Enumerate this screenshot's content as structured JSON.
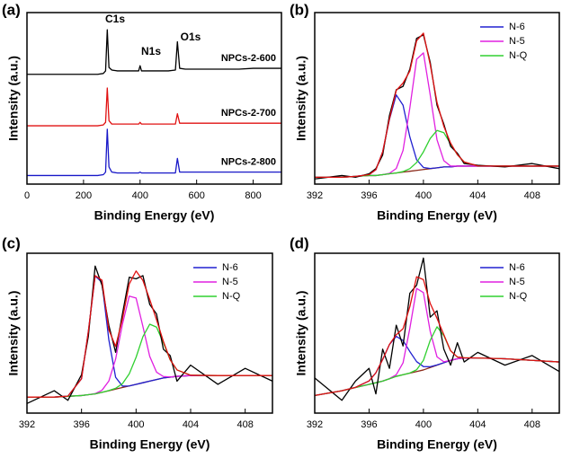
{
  "chart_data": [
    {
      "type": "line",
      "panel_label": "(a)",
      "x_label": "Binding Energy (eV)",
      "y_label": "Intensity (a.u.)",
      "xlim": [
        0,
        900
      ],
      "xticks": [
        0,
        200,
        400,
        600,
        800
      ],
      "ylim": [
        0,
        100
      ],
      "legend": "inline",
      "annotations": [
        "C1s",
        "N1s",
        "O1s"
      ],
      "x": [
        0,
        50,
        100,
        150,
        200,
        250,
        270,
        278,
        284,
        290,
        300,
        320,
        360,
        395,
        400,
        405,
        450,
        500,
        525,
        532,
        540,
        560,
        600,
        650,
        700,
        750,
        800,
        850,
        900
      ],
      "series": [
        {
          "name": "NPCs-2-600",
          "color": "#000000",
          "values": [
            64,
            64,
            64,
            64,
            64,
            64,
            64.5,
            66,
            90,
            68,
            66.5,
            66,
            66,
            66,
            69,
            66,
            66,
            66,
            66.5,
            83,
            67.5,
            67,
            67,
            67,
            67,
            67,
            67.5,
            67.5,
            67.5
          ]
        },
        {
          "name": "NPCs-2-700",
          "color": "#e01010",
          "values": [
            34,
            34,
            34,
            34,
            34,
            34,
            34.5,
            36,
            56,
            37,
            35,
            35,
            35,
            35,
            36,
            35,
            35,
            35,
            35,
            41,
            35.5,
            35.5,
            35.5,
            35.5,
            35.5,
            35.5,
            35.5,
            35.5,
            35.5
          ]
        },
        {
          "name": "NPCs-2-800",
          "color": "#1818c8",
          "values": [
            5,
            5,
            5,
            5,
            5,
            5,
            5.5,
            7,
            32,
            10,
            7,
            6.5,
            6.5,
            6.5,
            7,
            6.5,
            6.5,
            6.5,
            6.5,
            15,
            7,
            7,
            7,
            7,
            7,
            7,
            7,
            7,
            7
          ]
        }
      ]
    },
    {
      "type": "line",
      "panel_label": "(b)",
      "x_label": "Binding Energy (eV)",
      "y_label": "Intensity (a.u.)",
      "xlim": [
        392,
        410
      ],
      "xticks": [
        392,
        396,
        400,
        404,
        408
      ],
      "ylim": [
        0,
        100
      ],
      "legend": "upper right",
      "x": [
        392,
        394,
        395,
        396,
        396.5,
        397,
        397.5,
        398,
        398.5,
        399,
        399.5,
        400,
        400.5,
        401,
        401.5,
        402,
        402.5,
        403,
        404,
        406,
        408,
        410
      ],
      "series": [
        {
          "color": "#8b2a1a",
          "values": [
            4,
            4,
            4.5,
            5,
            5,
            5.5,
            6,
            6.5,
            7,
            7.5,
            8,
            8.5,
            9,
            9.5,
            10,
            10,
            10.5,
            10.5,
            10.5,
            10.5,
            10.5,
            10.5
          ]
        },
        {
          "name": "N-6",
          "color": "#2020d0",
          "values": [
            4,
            4,
            4.5,
            5.5,
            8.4,
            18.8,
            37.7,
            52,
            46,
            27.5,
            14.2,
            9.7,
            9.1,
            9.5,
            10,
            10,
            10.5,
            10.5,
            10.5,
            10.5,
            10.5,
            10.5
          ]
        },
        {
          "name": "N-5",
          "color": "#e020e0",
          "values": [
            4,
            4,
            4.5,
            5,
            5,
            5.5,
            6.3,
            9.1,
            19.6,
            44.4,
            72.8,
            76.5,
            52,
            25.8,
            13.7,
            10.5,
            10.5,
            10.5,
            10.5,
            10.5,
            10.5,
            10.5
          ]
        },
        {
          "name": "N-Q",
          "color": "#30d030",
          "values": [
            4,
            4,
            4.5,
            5,
            5,
            5.5,
            6,
            6.5,
            7.3,
            9,
            12.6,
            18.8,
            26.6,
            31.3,
            30,
            23.4,
            17.1,
            12.9,
            10.6,
            10.5,
            10.5,
            10.5
          ]
        },
        {
          "color": "#000000",
          "values": [
            3,
            5,
            4,
            6,
            9,
            17,
            40,
            55,
            57,
            67,
            85,
            87,
            71,
            46,
            35,
            22,
            18,
            12,
            11,
            10,
            12,
            9
          ]
        },
        {
          "color": "#e01010",
          "values": [
            4,
            4,
            4.5,
            5.5,
            8.4,
            18.8,
            38,
            54.6,
            58.9,
            65.9,
            83.6,
            88,
            69.7,
            47.6,
            33.7,
            23.9,
            17.1,
            12.9,
            10.6,
            10.5,
            10.5,
            10.5
          ]
        }
      ]
    },
    {
      "type": "line",
      "panel_label": "(c)",
      "x_label": "Binding Energy (eV)",
      "y_label": "Intensity (a.u.)",
      "xlim": [
        392,
        410
      ],
      "xticks": [
        392,
        396,
        400,
        404,
        408
      ],
      "ylim": [
        0,
        100
      ],
      "legend": "upper right",
      "x": [
        392,
        394,
        395,
        396,
        396.5,
        397,
        397.5,
        398,
        398.5,
        399,
        399.5,
        400,
        400.5,
        401,
        401.5,
        402,
        402.5,
        403,
        404,
        406,
        408,
        410
      ],
      "series": [
        {
          "color": "#8b2a1a",
          "values": [
            10,
            10,
            10.5,
            11,
            11.5,
            12,
            13,
            14,
            15,
            16,
            17,
            18,
            19,
            20,
            21,
            22,
            22.5,
            23,
            23.5,
            23.5,
            23.5,
            23.5
          ]
        },
        {
          "name": "N-6",
          "color": "#2020d0",
          "values": [
            10,
            10,
            10.6,
            21.5,
            51.1,
            85.8,
            81.8,
            46,
            22.4,
            16.9,
            17,
            18,
            19,
            20,
            21,
            22,
            22.5,
            23,
            23.5,
            23.5,
            23.5,
            23.5
          ]
        },
        {
          "name": "N-5",
          "color": "#e020e0",
          "values": [
            10,
            10,
            10.5,
            11,
            11.5,
            12.2,
            14.3,
            20,
            33.8,
            55.6,
            73.2,
            72,
            54.2,
            35.5,
            25.6,
            22.9,
            22.6,
            23,
            23.5,
            23.5,
            23.5,
            23.5
          ]
        },
        {
          "name": "N-Q",
          "color": "#30d030",
          "values": [
            10,
            10,
            10.5,
            11,
            11.5,
            12,
            13,
            14.1,
            15.5,
            18.4,
            24.6,
            34.9,
            47.8,
            55.6,
            53.8,
            44,
            33.3,
            27,
            23.7,
            23.5,
            23.5,
            23.5
          ]
        },
        {
          "color": "#000000",
          "values": [
            6,
            14,
            8,
            24,
            48,
            92,
            80,
            55,
            38,
            62,
            85,
            84,
            86,
            68,
            62,
            40,
            36,
            20,
            30,
            18,
            28,
            20
          ]
        },
        {
          "color": "#e01010",
          "values": [
            10,
            10,
            10.6,
            21.5,
            51.1,
            86,
            83.1,
            52.1,
            41.7,
            58.9,
            80.8,
            88.9,
            83,
            71.1,
            58.4,
            44.9,
            33.4,
            27,
            23.7,
            23.5,
            23.5,
            23.5
          ]
        }
      ]
    },
    {
      "type": "line",
      "panel_label": "(d)",
      "x_label": "Binding Energy (eV)",
      "y_label": "Intensity (a.u.)",
      "xlim": [
        392,
        410
      ],
      "xticks": [
        392,
        396,
        400,
        404,
        408
      ],
      "ylim": [
        0,
        100
      ],
      "legend": "upper right",
      "x": [
        392,
        394,
        395,
        396,
        396.5,
        397,
        397.5,
        398,
        398.5,
        399,
        399.5,
        400,
        400.5,
        401,
        401.5,
        402,
        402.5,
        403,
        404,
        406,
        408,
        410
      ],
      "series": [
        {
          "color": "#8b2a1a",
          "values": [
            11,
            14,
            16,
            18,
            19,
            20,
            21.5,
            23,
            24,
            25,
            26,
            27,
            28.5,
            30,
            31.5,
            33,
            34,
            34.5,
            34.5,
            34,
            33,
            32
          ]
        },
        {
          "name": "N-6",
          "color": "#2020d0",
          "values": [
            11,
            14,
            16.1,
            20.1,
            25.2,
            33.5,
            42.9,
            48,
            45.4,
            38.5,
            32.2,
            29.1,
            29,
            30.1,
            31.5,
            33,
            34,
            34.5,
            34.5,
            34,
            33,
            32
          ]
        },
        {
          "name": "N-5",
          "color": "#e020e0",
          "values": [
            11,
            14,
            16,
            18,
            19,
            20,
            21.6,
            24,
            31.4,
            53,
            78,
            75.4,
            51.1,
            35.2,
            32.1,
            33,
            34,
            34.5,
            34.5,
            34,
            33,
            32
          ]
        },
        {
          "name": "N-Q",
          "color": "#30d030",
          "values": [
            11,
            14,
            16,
            18,
            19,
            20,
            21.5,
            23,
            24,
            25.1,
            27.1,
            33,
            45.5,
            54,
            48.5,
            39,
            35.1,
            34.6,
            34.5,
            34,
            33,
            32
          ]
        },
        {
          "color": "#000000",
          "values": [
            22,
            8,
            20,
            28,
            12,
            40,
            28,
            55,
            42,
            75,
            80,
            97,
            60,
            64,
            40,
            30,
            44,
            32,
            38,
            30,
            36,
            26
          ]
        },
        {
          "color": "#e01010",
          "values": [
            11,
            14,
            16.1,
            20.1,
            25.2,
            33.5,
            43,
            49,
            52.8,
            66.6,
            85.3,
            83.5,
            68.6,
            59.3,
            49.1,
            39,
            35.1,
            34.6,
            34.5,
            34,
            33,
            32
          ]
        }
      ]
    }
  ]
}
